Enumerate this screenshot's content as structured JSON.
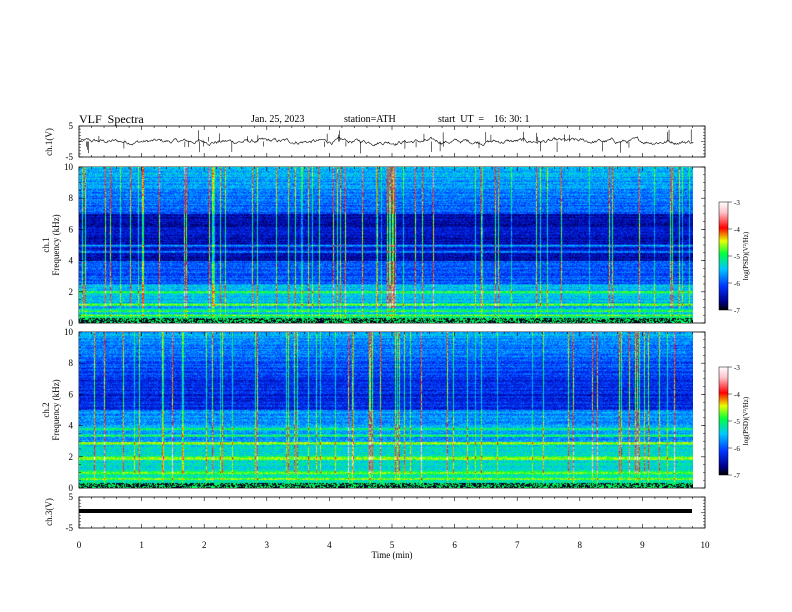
{
  "header": {
    "title": "VLF  Spectra",
    "date": "Jan. 25, 2023",
    "station": "station=ATH",
    "start_label": "start  UT  =",
    "start_time": "16: 30: 1"
  },
  "chart_data": [
    {
      "type": "line",
      "name": "ch1-waveform",
      "ylabel": "ch.1(V)",
      "ylim": [
        -5,
        5
      ],
      "yticks": [
        "5",
        "-5"
      ],
      "xlim": [
        0,
        10
      ],
      "baseline": 0,
      "noise_amplitude": 0.6,
      "spike_count": 45
    },
    {
      "type": "heatmap",
      "name": "ch1-spectrogram",
      "ylabel": "ch.1\nFrequency  (kHz)",
      "ylabel_line1": "ch.1",
      "ylabel_line2": "Frequency  (kHz)",
      "ylim": [
        0,
        10
      ],
      "yticks": [
        "0",
        "2",
        "4",
        "6",
        "8",
        "10"
      ],
      "xlim": [
        0,
        10
      ],
      "data_end_min": 9.82,
      "colorbar": {
        "label": "log(PSD)(V²/Hz)",
        "ticks": [
          "-3",
          "-4",
          "-5",
          "-6",
          "-7"
        ],
        "range": [
          -7,
          -3
        ]
      },
      "bands_khz": [
        0.3,
        0.5,
        0.8,
        1.2,
        2.0,
        4.6,
        5.0
      ]
    },
    {
      "type": "heatmap",
      "name": "ch2-spectrogram",
      "ylabel_line1": "ch.2",
      "ylabel_line2": "Frequency  (kHz)",
      "ylim": [
        0,
        10
      ],
      "yticks": [
        "0",
        "2",
        "4",
        "6",
        "8",
        "10"
      ],
      "xlim": [
        0,
        10
      ],
      "data_end_min": 9.82,
      "colorbar": {
        "label": "log(PSD)(V²/Hz)",
        "ticks": [
          "-3",
          "-4",
          "-5",
          "-6",
          "-7"
        ],
        "range": [
          -7,
          -3
        ]
      },
      "bands_khz": [
        0.6,
        1.0,
        1.9,
        2.0,
        2.9,
        3.4,
        3.8
      ]
    },
    {
      "type": "line",
      "name": "ch3-waveform",
      "ylabel": "ch.3(V)",
      "ylim": [
        -5,
        5
      ],
      "yticks": [
        "5",
        "-5"
      ],
      "xlim": [
        0,
        10
      ],
      "baseline": -1.2
    }
  ],
  "xaxis": {
    "label": "Time  (min)",
    "ticks": [
      "0",
      "1",
      "2",
      "3",
      "4",
      "5",
      "6",
      "7",
      "8",
      "9",
      "10"
    ]
  },
  "colors": {
    "black": "#000000",
    "dark_blue": "#00008b",
    "blue": "#0033ff",
    "cyan": "#00c8ff",
    "green": "#00ff40",
    "yellow": "#e8ff00",
    "red": "#ff0000",
    "pink": "#ffc0c8",
    "white": "#ffffff"
  }
}
